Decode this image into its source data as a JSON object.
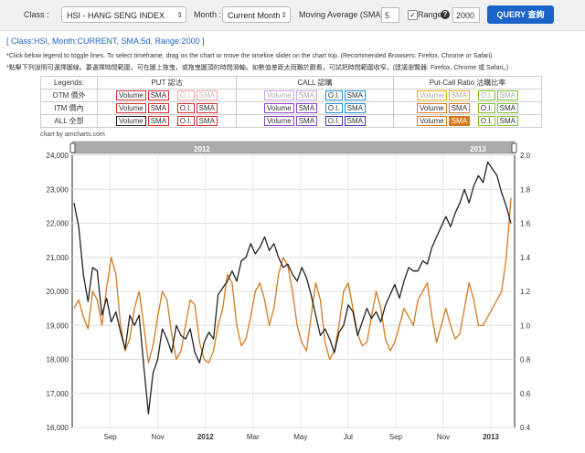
{
  "toolbar": {
    "class_label": "Class :",
    "class_value": "HSI - HANG SENG INDEX",
    "month_label": "Month :",
    "month_value": "Current Month",
    "sma_label": "Moving Average (SMA) :",
    "sma_value": "5",
    "range_check": "✓",
    "range_label": "Range",
    "help_icon": "?",
    "range_value": "2000",
    "query_button": "QUERY 查詢"
  },
  "header": {
    "title": "[ Class:HSI, Month:CURRENT, SMA:5d, Range:2000 ]",
    "note_en": "*Click below legend to toggle lines. To select timeframe, drag on the chart or move the timeline slider on the chart top. (Recommended Browsers: Firefox, Chrome or Safari)",
    "note_zh": "*點擊下列說明可選擇圖線。要選擇時間範圍，可在圖上拖曳，或拖曳圖頂的時間滑軸。如數值差距太而難於觀看，可試把時間範圍收窄。(建議瀏覽器: Firefox, Chrome 或 Safari。)"
  },
  "legend": {
    "col_legends": "Legends:",
    "col_put": "PUT 認沽",
    "col_call": "CALL 認購",
    "col_ratio": "Put-Call Ratio 沽購比率",
    "rows": [
      {
        "label": "OTM 價外"
      },
      {
        "label": "ITM 價內"
      },
      {
        "label": "ALL 全部"
      }
    ],
    "volume": "Volume",
    "sma": "SMA",
    "oi": "O.I."
  },
  "credit": "chart by amcharts.com",
  "colors": {
    "index_line": "#222222",
    "ratio_line": "#d4791f",
    "put": "#d42a2a",
    "call": "#8a3fc9",
    "call_oi": "#1a8fd4",
    "ratio_vol": "#e0b020",
    "ratio_oi": "#7bbf2a",
    "accent": "#1a63c8"
  },
  "chart_data": {
    "type": "line",
    "left_axis": {
      "ticks": [
        "16,000",
        "17,000",
        "18,000",
        "19,000",
        "20,000",
        "21,000",
        "22,000",
        "23,000",
        "24,000"
      ],
      "ylim": [
        16000,
        24000
      ]
    },
    "right_axis": {
      "ticks": [
        "0.4",
        "0.6",
        "0.8",
        "1.0",
        "1.2",
        "1.4",
        "1.6",
        "1.8",
        "2.0"
      ],
      "ylim": [
        0.4,
        2.0
      ]
    },
    "x_ticks": [
      {
        "label": "Sep",
        "bold": false
      },
      {
        "label": "Nov",
        "bold": false
      },
      {
        "label": "2012",
        "bold": true
      },
      {
        "label": "Mar",
        "bold": false
      },
      {
        "label": "May",
        "bold": false
      },
      {
        "label": "Jul",
        "bold": false
      },
      {
        "label": "Sep",
        "bold": false
      },
      {
        "label": "Nov",
        "bold": false
      },
      {
        "label": "2013",
        "bold": true
      }
    ],
    "scroll_labels": [
      "2012",
      "2013"
    ],
    "series": [
      {
        "values": [
          22600,
          21900,
          20500,
          19700,
          20700,
          20600,
          19300,
          19800,
          19100,
          19400,
          18800,
          18300,
          19300,
          19000,
          19300,
          17800,
          16400,
          17600,
          18000,
          18900,
          18600,
          18200,
          19000,
          18700,
          18600,
          18900,
          18200,
          17900,
          18500,
          18800,
          18600,
          19900,
          20100,
          20300,
          20600,
          20300,
          20900,
          21000,
          21400,
          21100,
          21300,
          21600,
          21200,
          21400,
          21000,
          20700,
          20800,
          20500,
          20300,
          20700,
          20400,
          19900,
          19300,
          18700,
          18900,
          18600,
          18200,
          18800,
          19000,
          19600,
          19400,
          18700,
          19100,
          19500,
          19200,
          19400,
          19100,
          19600,
          19900,
          20200,
          19800,
          20300,
          20700,
          20600,
          20600,
          20900,
          20800,
          21300,
          21600,
          21900,
          22200,
          21900,
          22300,
          22600,
          23000,
          22600,
          23100,
          23400,
          23200,
          23800,
          23600,
          23400,
          22900,
          22500,
          22000
        ]
      },
      {
        "values": [
          1.1,
          1.15,
          1.05,
          0.98,
          1.2,
          1.15,
          1.0,
          1.22,
          1.4,
          1.3,
          1.0,
          0.85,
          0.92,
          1.1,
          1.2,
          1.0,
          0.78,
          0.88,
          1.05,
          1.2,
          1.15,
          0.95,
          0.8,
          0.85,
          1.0,
          1.15,
          1.12,
          0.9,
          0.8,
          0.78,
          0.85,
          1.0,
          1.1,
          1.3,
          1.25,
          1.0,
          0.88,
          0.92,
          1.05,
          1.2,
          1.25,
          1.15,
          1.0,
          1.1,
          1.3,
          1.4,
          1.35,
          1.2,
          1.0,
          0.9,
          0.85,
          1.05,
          1.25,
          1.15,
          0.9,
          0.8,
          0.85,
          1.0,
          1.2,
          1.25,
          1.1,
          0.95,
          0.88,
          0.9,
          1.05,
          1.2,
          1.1,
          0.92,
          0.85,
          0.9,
          1.0,
          1.1,
          1.05,
          1.0,
          1.15,
          1.2,
          1.25,
          1.05,
          0.9,
          1.0,
          1.1,
          1.0,
          0.92,
          0.95,
          1.1,
          1.25,
          1.15,
          1.0,
          1.0,
          1.05,
          1.1,
          1.15,
          1.2,
          1.4,
          1.75
        ]
      }
    ]
  }
}
